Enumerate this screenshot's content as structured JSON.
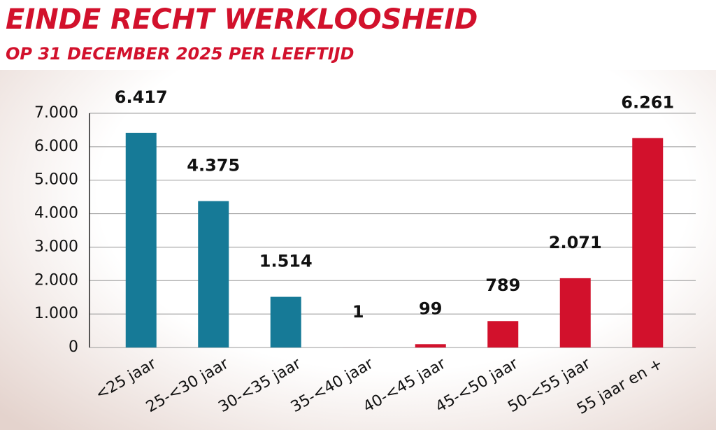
{
  "chart_data": {
    "type": "bar",
    "title": "EINDE RECHT WERKLOOSHEID",
    "subtitle": "OP 31 DECEMBER 2025 PER LEEFTIJD",
    "categories": [
      "<25 jaar",
      "25-<30 jaar",
      "30-<35 jaar",
      "35-<40 jaar",
      "40-<45 jaar",
      "45-<50 jaar",
      "50-<55 jaar",
      "55 jaar en +"
    ],
    "values": [
      6417,
      4375,
      1514,
      1,
      99,
      789,
      2071,
      6261
    ],
    "value_labels": [
      "6.417",
      "4.375",
      "1.514",
      "1",
      "99",
      "789",
      "2.071",
      "6.261"
    ],
    "colors": [
      "#167a97",
      "#167a97",
      "#167a97",
      "#d2112c",
      "#d2112c",
      "#d2112c",
      "#d2112c",
      "#d2112c"
    ],
    "ylim": [
      0,
      7000
    ],
    "yticks": [
      0,
      {
        "value": 1000,
        "label": "1.000"
      },
      {
        "value": 2000,
        "label": "2.000"
      },
      {
        "value": 3000,
        "label": "3.000"
      },
      {
        "value": 4000,
        "label": "4.000"
      },
      {
        "value": 5000,
        "label": "5.000"
      },
      {
        "value": 6000,
        "label": "6.000"
      },
      {
        "value": 7000,
        "label": "7.000"
      }
    ],
    "grid": true
  }
}
